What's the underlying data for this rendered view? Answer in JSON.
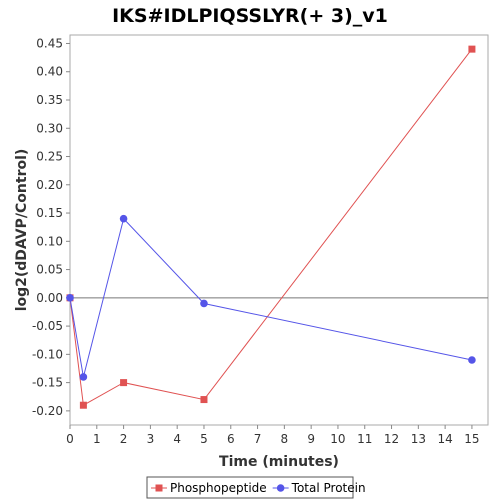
{
  "chart_data": {
    "type": "line",
    "title": "IKS#IDLPIQSSLYR(+ 3)_v1",
    "xlabel": "Time (minutes)",
    "ylabel": "log2(dDAVP/Control)",
    "xlim": [
      0,
      15.6
    ],
    "ylim": [
      -0.225,
      0.465
    ],
    "x_ticks": [
      0,
      1,
      2,
      3,
      4,
      5,
      6,
      7,
      8,
      9,
      10,
      11,
      12,
      13,
      14,
      15
    ],
    "y_ticks": [
      -0.2,
      -0.15,
      -0.1,
      -0.05,
      0.0,
      0.05,
      0.1,
      0.15,
      0.2,
      0.25,
      0.3,
      0.35,
      0.4,
      0.45
    ],
    "zero_line": true,
    "grid": false,
    "legend_position": "bottom",
    "series": [
      {
        "name": "Phosphopeptide",
        "color": "#e05252",
        "marker": "square",
        "x": [
          0,
          0.5,
          2,
          5,
          15
        ],
        "y": [
          0.0,
          -0.19,
          -0.15,
          -0.18,
          0.44
        ]
      },
      {
        "name": "Total Protein",
        "color": "#5555e8",
        "marker": "circle",
        "x": [
          0,
          0.5,
          2,
          5,
          15
        ],
        "y": [
          0.0,
          -0.14,
          0.14,
          -0.01,
          -0.11
        ]
      }
    ]
  }
}
